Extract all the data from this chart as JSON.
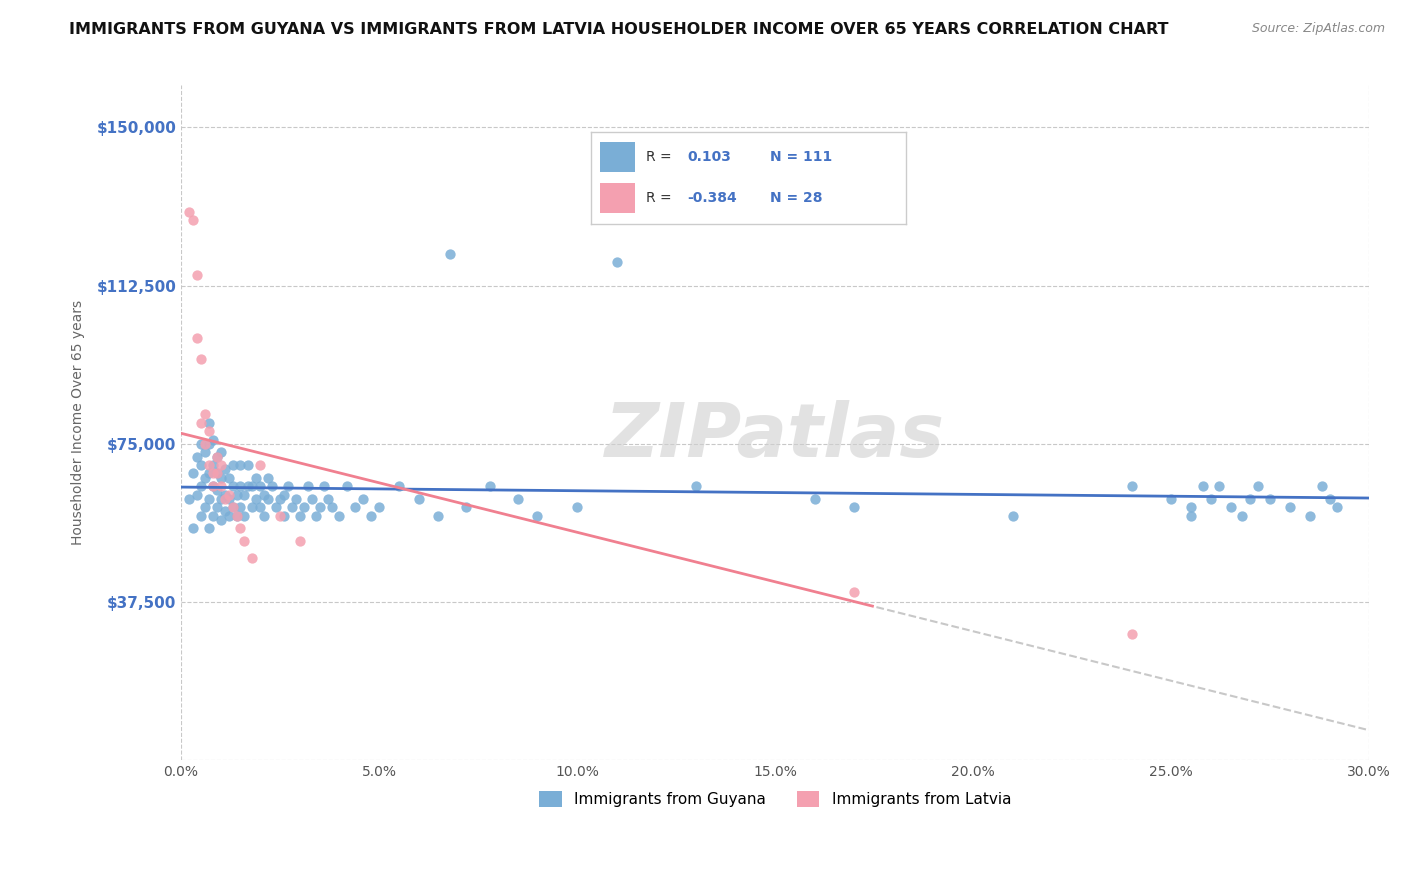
{
  "title": "IMMIGRANTS FROM GUYANA VS IMMIGRANTS FROM LATVIA HOUSEHOLDER INCOME OVER 65 YEARS CORRELATION CHART",
  "source": "Source: ZipAtlas.com",
  "ylabel": "Householder Income Over 65 years",
  "xlim": [
    0.0,
    0.3
  ],
  "ylim": [
    0,
    160000
  ],
  "yticks": [
    0,
    37500,
    75000,
    112500,
    150000
  ],
  "ytick_labels": [
    "",
    "$37,500",
    "$75,000",
    "$112,500",
    "$150,000"
  ],
  "xticks": [
    0.0,
    0.05,
    0.1,
    0.15,
    0.2,
    0.25,
    0.3
  ],
  "xtick_labels": [
    "0.0%",
    "5.0%",
    "10.0%",
    "15.0%",
    "20.0%",
    "25.0%",
    "30.0%"
  ],
  "guyana_color": "#7aaed6",
  "latvia_color": "#f4a0b0",
  "line_blue": "#4472c4",
  "line_pink": "#f08090",
  "watermark": "ZIPatlas",
  "watermark_color": "#d0d0d0",
  "background": "#ffffff",
  "grid_color": "#c8c8c8",
  "legend_label_guyana": "Immigrants from Guyana",
  "legend_label_latvia": "Immigrants from Latvia",
  "guyana_x": [
    0.002,
    0.003,
    0.003,
    0.004,
    0.004,
    0.005,
    0.005,
    0.005,
    0.005,
    0.006,
    0.006,
    0.006,
    0.007,
    0.007,
    0.007,
    0.007,
    0.007,
    0.008,
    0.008,
    0.008,
    0.008,
    0.009,
    0.009,
    0.009,
    0.009,
    0.01,
    0.01,
    0.01,
    0.01,
    0.011,
    0.011,
    0.011,
    0.012,
    0.012,
    0.012,
    0.013,
    0.013,
    0.013,
    0.014,
    0.014,
    0.015,
    0.015,
    0.015,
    0.016,
    0.016,
    0.017,
    0.017,
    0.018,
    0.018,
    0.019,
    0.019,
    0.02,
    0.02,
    0.021,
    0.021,
    0.022,
    0.022,
    0.023,
    0.024,
    0.025,
    0.026,
    0.026,
    0.027,
    0.028,
    0.029,
    0.03,
    0.031,
    0.032,
    0.033,
    0.034,
    0.035,
    0.036,
    0.037,
    0.038,
    0.04,
    0.042,
    0.044,
    0.046,
    0.048,
    0.05,
    0.055,
    0.06,
    0.065,
    0.068,
    0.072,
    0.078,
    0.085,
    0.09,
    0.1,
    0.11,
    0.13,
    0.16,
    0.17,
    0.21,
    0.24,
    0.25,
    0.255,
    0.262,
    0.27,
    0.28,
    0.285,
    0.288,
    0.29,
    0.292,
    0.255,
    0.258,
    0.26,
    0.265,
    0.268,
    0.272,
    0.275
  ],
  "guyana_y": [
    62000,
    68000,
    55000,
    63000,
    72000,
    58000,
    70000,
    75000,
    65000,
    60000,
    67000,
    73000,
    55000,
    62000,
    68000,
    75000,
    80000,
    58000,
    65000,
    70000,
    76000,
    60000,
    64000,
    68000,
    72000,
    57000,
    62000,
    67000,
    73000,
    59000,
    63000,
    69000,
    58000,
    62000,
    67000,
    60000,
    65000,
    70000,
    58000,
    63000,
    60000,
    65000,
    70000,
    58000,
    63000,
    65000,
    70000,
    60000,
    65000,
    62000,
    67000,
    60000,
    65000,
    58000,
    63000,
    62000,
    67000,
    65000,
    60000,
    62000,
    58000,
    63000,
    65000,
    60000,
    62000,
    58000,
    60000,
    65000,
    62000,
    58000,
    60000,
    65000,
    62000,
    60000,
    58000,
    65000,
    60000,
    62000,
    58000,
    60000,
    65000,
    62000,
    58000,
    120000,
    60000,
    65000,
    62000,
    58000,
    60000,
    118000,
    65000,
    62000,
    60000,
    58000,
    65000,
    62000,
    60000,
    65000,
    62000,
    60000,
    58000,
    65000,
    62000,
    60000,
    58000,
    65000,
    62000,
    60000,
    58000,
    65000,
    62000
  ],
  "latvia_x": [
    0.002,
    0.003,
    0.004,
    0.004,
    0.005,
    0.005,
    0.006,
    0.006,
    0.007,
    0.007,
    0.008,
    0.008,
    0.009,
    0.009,
    0.01,
    0.01,
    0.011,
    0.012,
    0.013,
    0.014,
    0.015,
    0.016,
    0.018,
    0.02,
    0.025,
    0.03,
    0.17,
    0.24
  ],
  "latvia_y": [
    130000,
    128000,
    115000,
    100000,
    80000,
    95000,
    75000,
    82000,
    78000,
    70000,
    68000,
    65000,
    72000,
    68000,
    65000,
    70000,
    62000,
    63000,
    60000,
    58000,
    55000,
    52000,
    48000,
    70000,
    58000,
    52000,
    40000,
    30000
  ]
}
